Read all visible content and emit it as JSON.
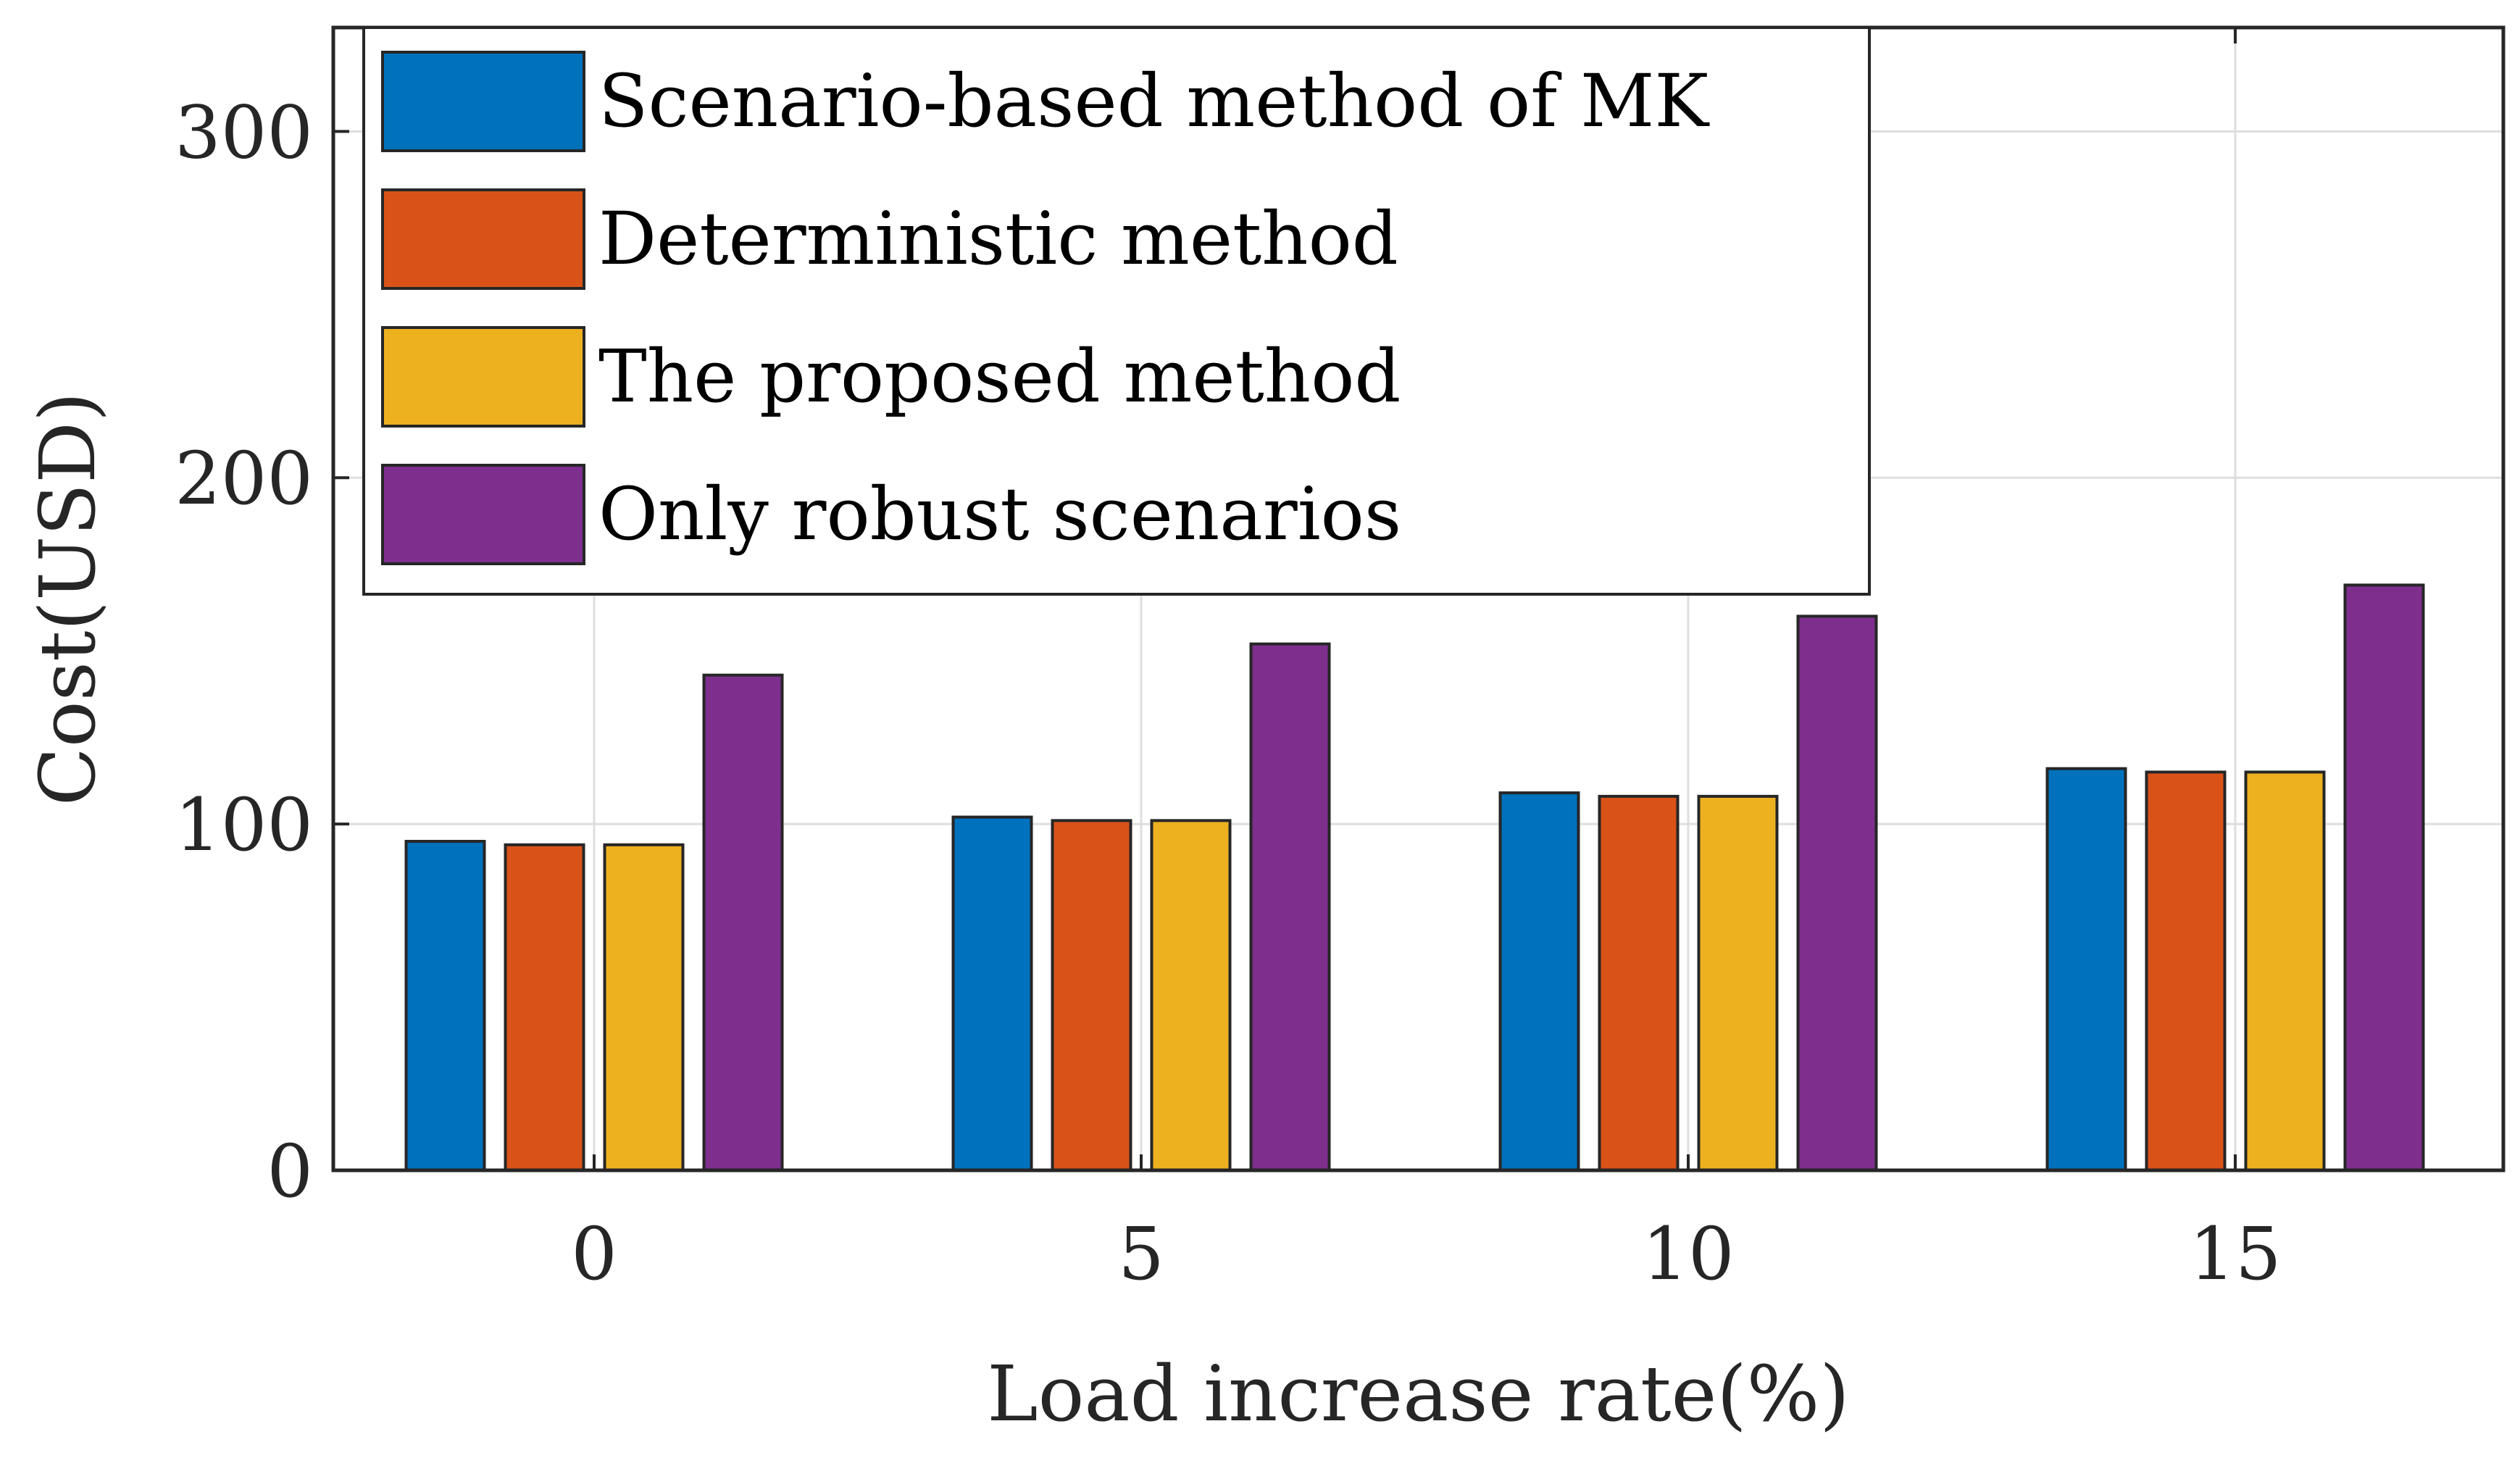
{
  "chart_data": {
    "type": "bar",
    "title": "",
    "xlabel": "Load increase rate(%)",
    "ylabel": "Cost(USD)",
    "categories": [
      "0",
      "5",
      "10",
      "15"
    ],
    "ylim": [
      0,
      330
    ],
    "yticks": [
      0,
      100,
      200,
      300
    ],
    "grid": true,
    "legend_position": "top-left",
    "series": [
      {
        "name": "Scenario-based method of MK",
        "color": "#0072BD",
        "values": [
          95,
          102,
          109,
          116
        ]
      },
      {
        "name": "Deterministic method",
        "color": "#D95319",
        "values": [
          94,
          101,
          108,
          115
        ]
      },
      {
        "name": "The proposed method",
        "color": "#EDB120",
        "values": [
          94,
          101,
          108,
          115
        ]
      },
      {
        "name": "Only robust scenarios",
        "color": "#7E2F8E",
        "values": [
          143,
          152,
          160,
          169
        ]
      }
    ]
  }
}
